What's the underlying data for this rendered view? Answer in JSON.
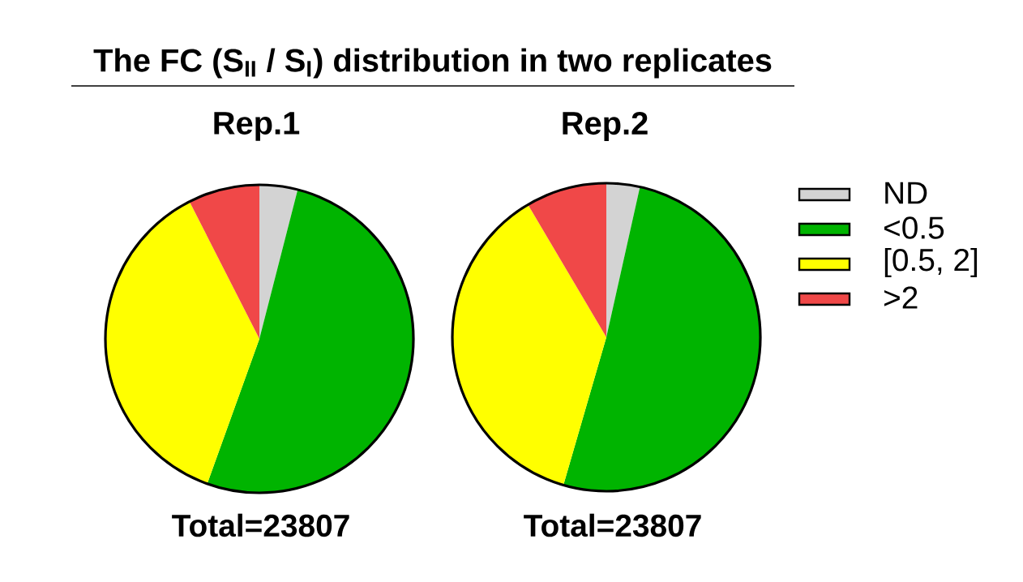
{
  "chart_data": [
    {
      "type": "pie",
      "title": "The FC (S$_{II}$ / S$_{I}$) distribution in two replicates",
      "subtitle": "Rep.1",
      "categories": [
        null,
        null,
        null,
        null
      ],
      "values": [
        4,
        51.5,
        37,
        7.5
      ],
      "colors": [
        "#d3d3d3",
        "#00b400",
        "#ffff00",
        "#f04848"
      ],
      "annotations": [
        "Total=23807"
      ]
    },
    {
      "type": "pie",
      "title": "Rep.2",
      "categories": [
        "ND",
        "<0.5",
        "[0.5, 2]",
        ">2"
      ],
      "values": [
        3.5,
        51,
        37,
        8.5
      ],
      "colors": [
        "#d3d3d3",
        "#00b400",
        "#ffff00",
        "#f04848"
      ],
      "annotations": [
        "Total=23807"
      ],
      "legend": "right"
    }
  ]
}
